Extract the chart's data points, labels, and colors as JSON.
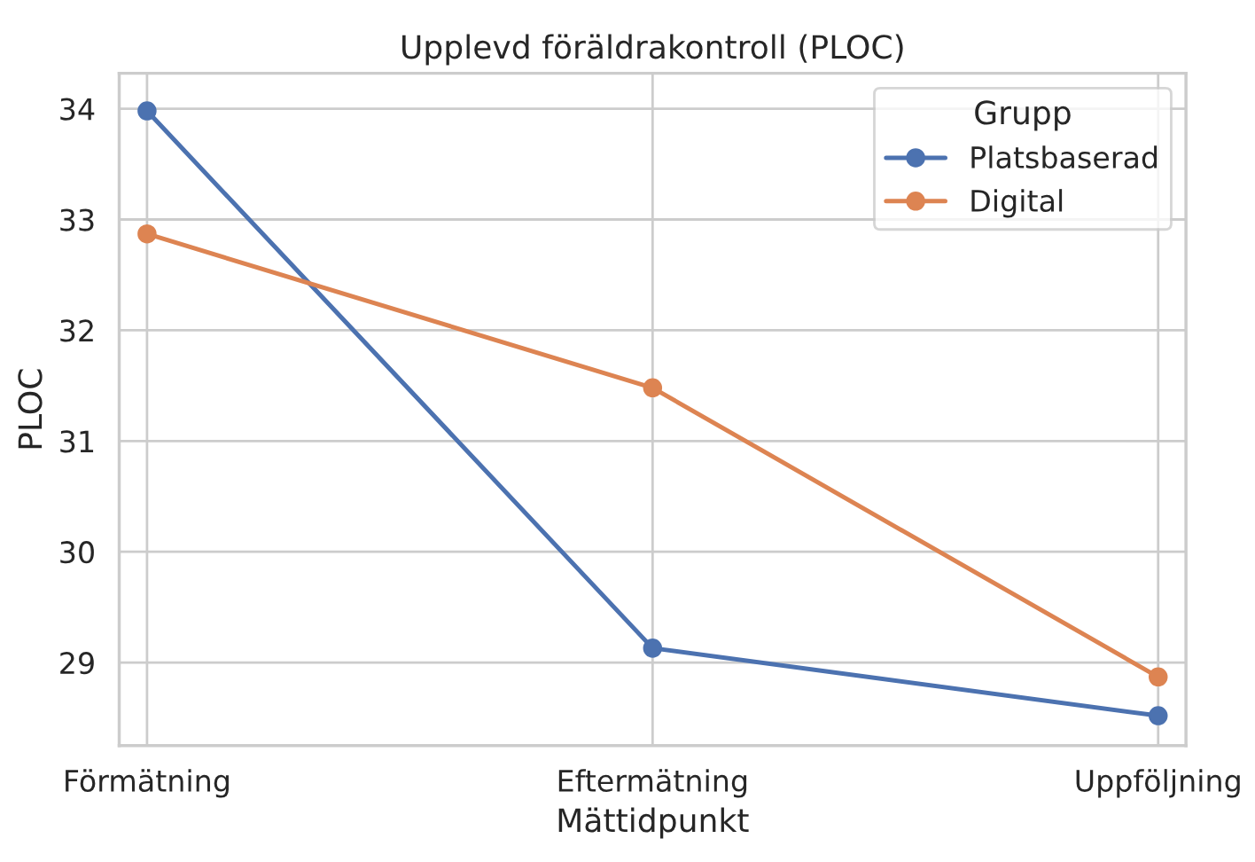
{
  "chart_data": {
    "type": "line",
    "title": "Upplevd föräldrakontroll (PLOC)",
    "xlabel": "Mättidpunkt",
    "ylabel": "PLOC",
    "legend_title": "Grupp",
    "categories": [
      "Förmätning",
      "Eftermätning",
      "Uppföljning"
    ],
    "series": [
      {
        "name": "Platsbaserad",
        "color": "#4c72b0",
        "values": [
          33.98,
          29.13,
          28.52
        ]
      },
      {
        "name": "Digital",
        "color": "#dd8452",
        "values": [
          32.87,
          31.48,
          28.87
        ]
      }
    ],
    "ylim": [
      28.25,
      34.32
    ],
    "yticks": [
      29,
      30,
      31,
      32,
      33,
      34
    ],
    "grid": true,
    "legend": "top right",
    "marker": "circle",
    "line_style": "solid"
  }
}
